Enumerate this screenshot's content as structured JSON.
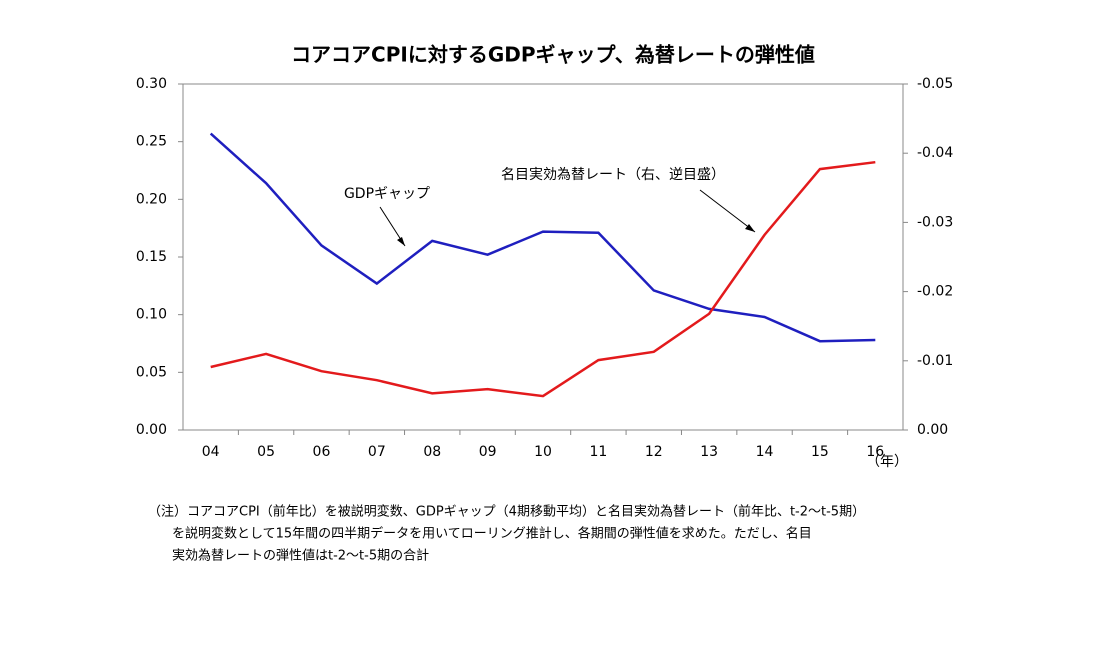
{
  "chart_data": {
    "type": "line",
    "title": "コアコアCPIに対するGDPギャップ、為替レートの弾性値",
    "categories": [
      "04",
      "05",
      "06",
      "07",
      "08",
      "09",
      "10",
      "11",
      "12",
      "13",
      "14",
      "15",
      "16"
    ],
    "x_unit_label": "（年）",
    "series": [
      {
        "name": "GDPギャップ",
        "color": "#1f1fbf",
        "axis": "y",
        "values": [
          0.257,
          0.214,
          0.16,
          0.127,
          0.164,
          0.152,
          0.172,
          0.171,
          0.121,
          0.105,
          0.098,
          0.077,
          0.078
        ]
      },
      {
        "name": "名目実効為替レート（右、逆目盛）",
        "color": "#e31a1c",
        "axis": "y2",
        "values": [
          -0.0091,
          -0.011,
          -0.0085,
          -0.0072,
          -0.0053,
          -0.0059,
          -0.0049,
          -0.0101,
          -0.0113,
          -0.0168,
          -0.0282,
          -0.0377,
          -0.0387
        ]
      }
    ],
    "ylim": [
      0,
      0.3
    ],
    "yticks": [
      {
        "value": 0,
        "label": "0.00"
      },
      {
        "value": 0.05,
        "label": "0.05"
      },
      {
        "value": 0.1,
        "label": "0.10"
      },
      {
        "value": 0.15,
        "label": "0.15"
      },
      {
        "value": 0.2,
        "label": "0.20"
      },
      {
        "value": 0.25,
        "label": "0.25"
      },
      {
        "value": 0.3,
        "label": "0.30"
      }
    ],
    "y2lim": [
      0,
      -0.05
    ],
    "y2ticks": [
      {
        "value": 0,
        "label": "0.00"
      },
      {
        "value": -0.01,
        "label": "-0.01"
      },
      {
        "value": -0.02,
        "label": "-0.02"
      },
      {
        "value": -0.03,
        "label": "-0.03"
      },
      {
        "value": -0.04,
        "label": "-0.04"
      },
      {
        "value": -0.05,
        "label": "-0.05"
      }
    ],
    "note": [
      "（注）コアコアCPI（前年比）を被説明変数、GDPギャップ（4期移動平均）と名目実効為替レート（前年比、t-2～t-5期）",
      "を説明変数として15年間の四半期データを用いてローリング推計し、各期間の弾性値を求めた。ただし、名目",
      "実効為替レートの弾性値はt-2～t-5期の合計"
    ]
  }
}
